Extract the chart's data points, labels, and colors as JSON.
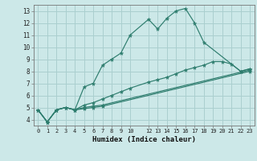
{
  "xlabel": "Humidex (Indice chaleur)",
  "bg_color": "#cce8e8",
  "line_color": "#2e7d6e",
  "grid_color": "#aacfcf",
  "xlim": [
    -0.5,
    23.5
  ],
  "ylim": [
    3.5,
    13.5
  ],
  "yticks": [
    4,
    5,
    6,
    7,
    8,
    9,
    10,
    11,
    12,
    13
  ],
  "xticks": [
    0,
    1,
    2,
    3,
    4,
    5,
    6,
    7,
    8,
    9,
    10,
    12,
    13,
    14,
    15,
    16,
    17,
    18,
    19,
    20,
    21,
    22,
    23
  ],
  "curves": [
    {
      "x": [
        0,
        1,
        2,
        3,
        4,
        5,
        6,
        7,
        8,
        9,
        10,
        12,
        13,
        14,
        15,
        16,
        17,
        18,
        22,
        23
      ],
      "y": [
        4.8,
        3.8,
        4.8,
        5.0,
        4.8,
        6.7,
        7.0,
        8.5,
        9.0,
        9.5,
        11.0,
        12.3,
        11.5,
        12.4,
        13.0,
        13.2,
        12.0,
        10.4,
        8.0,
        8.2
      ]
    },
    {
      "x": [
        0,
        1,
        2,
        3,
        4,
        5,
        6,
        7,
        8,
        9,
        10,
        12,
        13,
        14,
        15,
        16,
        17,
        18,
        19,
        20,
        21,
        22,
        23
      ],
      "y": [
        4.8,
        3.8,
        4.8,
        5.0,
        4.8,
        5.2,
        5.4,
        5.7,
        6.0,
        6.3,
        6.6,
        7.1,
        7.3,
        7.5,
        7.8,
        8.1,
        8.3,
        8.5,
        8.8,
        8.8,
        8.6,
        8.0,
        8.2
      ]
    },
    {
      "x": [
        0,
        1,
        2,
        3,
        4,
        5,
        6,
        7,
        23
      ],
      "y": [
        4.8,
        3.8,
        4.8,
        5.0,
        4.8,
        5.0,
        5.1,
        5.2,
        8.1
      ]
    },
    {
      "x": [
        0,
        1,
        2,
        3,
        4,
        5,
        6,
        7,
        23
      ],
      "y": [
        4.8,
        3.8,
        4.8,
        5.0,
        4.8,
        4.9,
        5.0,
        5.1,
        8.0
      ]
    }
  ]
}
